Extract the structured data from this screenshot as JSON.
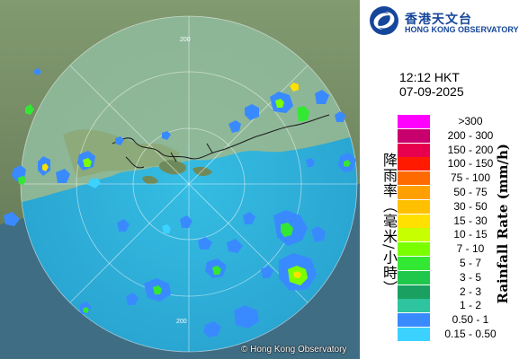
{
  "observatory": {
    "name_zh": "香港天文台",
    "name_en": "HONG KONG OBSERVATORY",
    "copyright": "© Hong Kong Observatory"
  },
  "timestamp": {
    "time": "12:12 HKT",
    "date": "07-09-2025"
  },
  "map": {
    "range_ring_labels": [
      "200",
      "200"
    ],
    "ring_color": "#ffffff",
    "coverage_color": "#2fb6de"
  },
  "legend": {
    "title_zh": "降雨率（毫米/小時）",
    "title_en": "Rainfall Rate (mm/h)",
    "items": [
      {
        "label": ">300",
        "color": "#ff00ff"
      },
      {
        "label": "200 - 300",
        "color": "#c8006e"
      },
      {
        "label": "150 - 200",
        "color": "#e6004d"
      },
      {
        "label": "100 - 150",
        "color": "#ff1a00"
      },
      {
        "label": "75 - 100",
        "color": "#ff6a00"
      },
      {
        "label": "50 - 75",
        "color": "#ffa000"
      },
      {
        "label": "30 - 50",
        "color": "#ffc000"
      },
      {
        "label": "15 - 30",
        "color": "#ffe000"
      },
      {
        "label": "10 - 15",
        "color": "#c8ff00"
      },
      {
        "label": "7 - 10",
        "color": "#7aff00"
      },
      {
        "label": "5 - 7",
        "color": "#33e833"
      },
      {
        "label": "3 - 5",
        "color": "#1fc84a"
      },
      {
        "label": "2 - 3",
        "color": "#1aa061"
      },
      {
        "label": "1 - 2",
        "color": "#2ec4a0"
      },
      {
        "label": "0.50 - 1",
        "color": "#3a8aff"
      },
      {
        "label": "0.15 - 0.50",
        "color": "#3cd2ff"
      }
    ]
  }
}
